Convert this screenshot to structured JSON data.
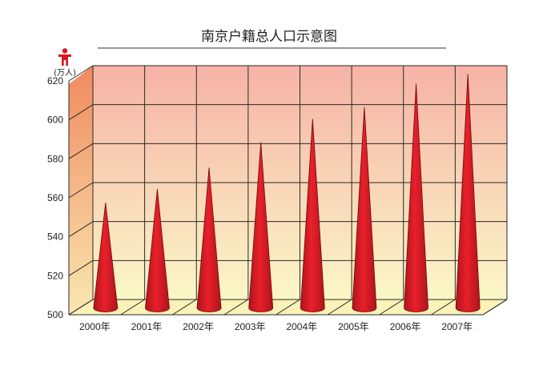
{
  "chart_data": {
    "type": "bar",
    "title": "南京户籍总人口示意图",
    "ylabel": "(万人)",
    "ylim": [
      500,
      620
    ],
    "yticks": [
      500,
      520,
      540,
      560,
      580,
      600,
      620
    ],
    "categories": [
      "2000年",
      "2001年",
      "2002年",
      "2003年",
      "2004年",
      "2005年",
      "2006年",
      "2007年"
    ],
    "values": [
      554,
      561,
      572,
      585,
      597,
      603,
      615,
      620
    ],
    "grid": true,
    "mark_shape": "cone",
    "icon": "person-icon"
  },
  "colors": {
    "cone": "#e8202a",
    "cone_dark": "#b0141c",
    "cone_edge": "#6a0a0e",
    "back_top": "#f6b2a6",
    "back_bottom": "#fbf7c6",
    "side_top": "#f08a5e",
    "side_bottom": "#fae7b0",
    "floor": "#fbf2b8",
    "grid": "#2a2a2a",
    "icon": "#d6191f"
  }
}
